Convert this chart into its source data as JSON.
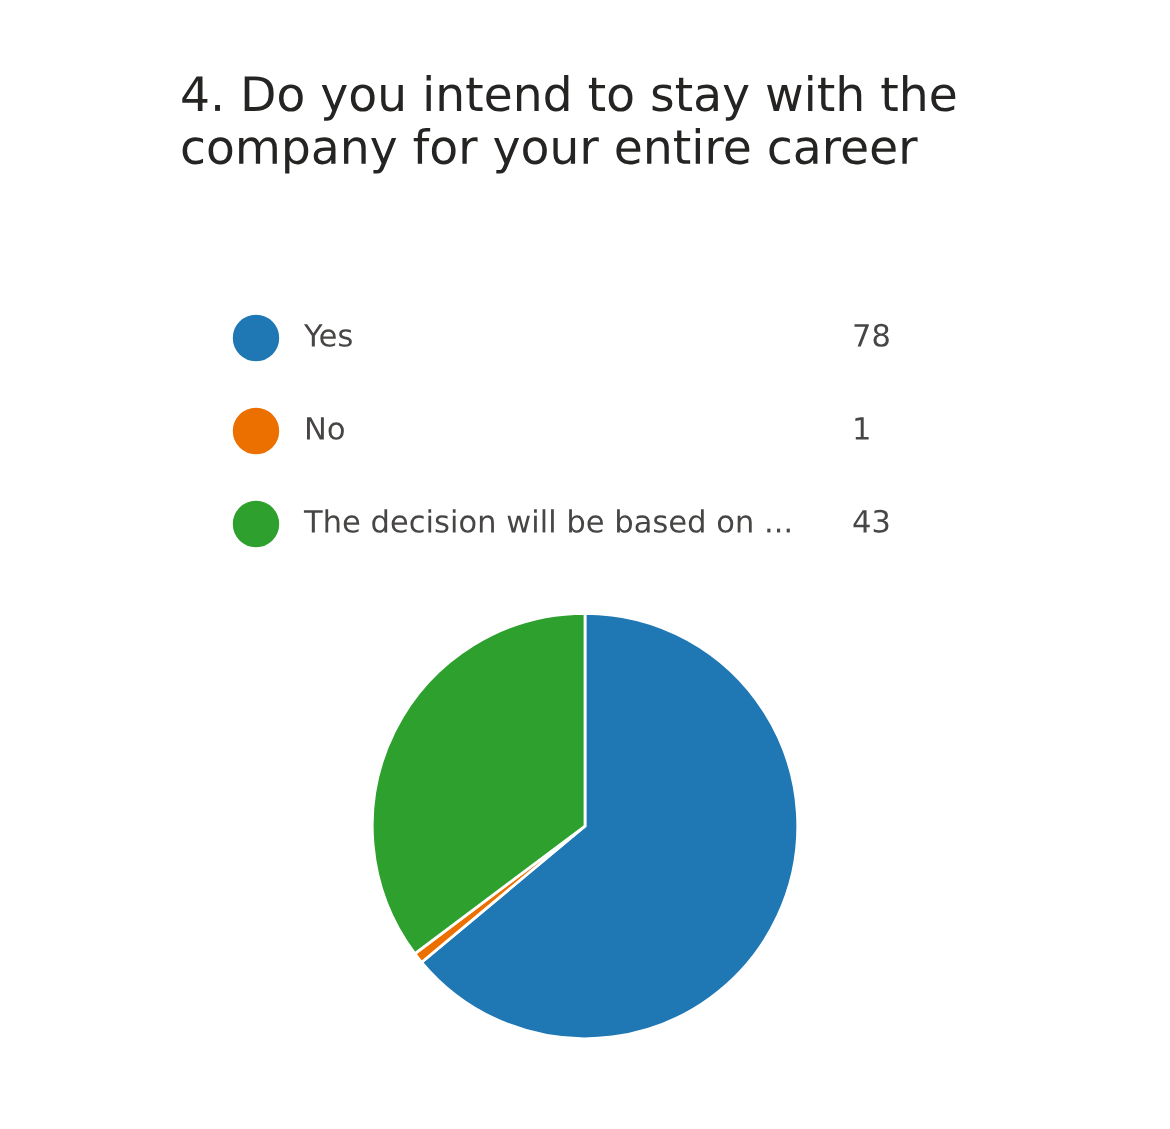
{
  "chart_data": {
    "type": "pie",
    "title": "4. Do you intend to stay with the company for your entire career",
    "categories": [
      "Yes",
      "No",
      "The decision will be based on ..."
    ],
    "values": [
      78,
      1,
      43
    ],
    "colors": [
      "#1f77b4",
      "#ec7000",
      "#2ea02d"
    ],
    "data_labels": true,
    "legend": "top"
  }
}
